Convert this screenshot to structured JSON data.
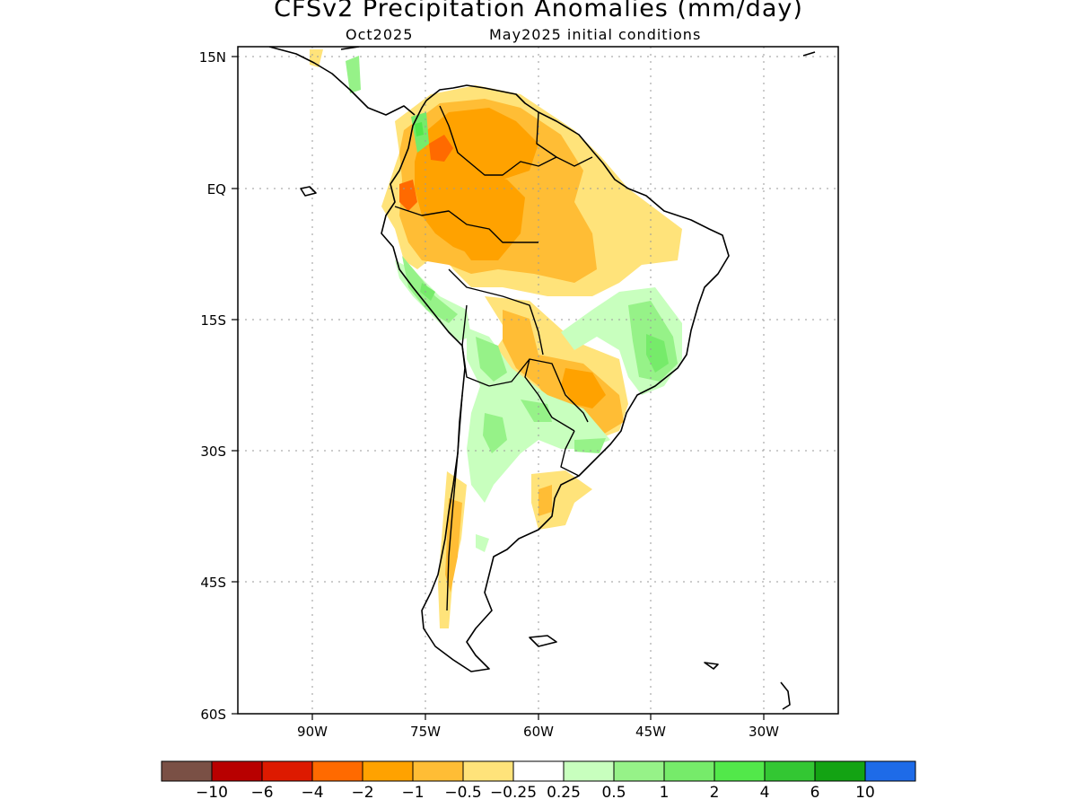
{
  "title": "CFSv2 Precipitation Anomalies (mm/day)",
  "subtitle_left": "Oct2025",
  "subtitle_right": "May2025 initial conditions",
  "lat_labels": [
    "15N",
    "EQ",
    "15S",
    "30S",
    "45S",
    "60S"
  ],
  "lon_labels": [
    "90W",
    "75W",
    "60W",
    "45W",
    "30W"
  ],
  "colorbar": {
    "colors": [
      "#7a5045",
      "#b80000",
      "#dd1a00",
      "#ff6a00",
      "#ffa200",
      "#ffbd35",
      "#ffe37a",
      "#ffffff",
      "#c8ffbe",
      "#96f288",
      "#76eb6a",
      "#52e84a",
      "#33c733",
      "#13a313",
      "#1e6be8"
    ],
    "labels": [
      "−10",
      "−6",
      "−4",
      "−2",
      "−1",
      "−0.5",
      "−0.25",
      "0.25",
      "0.5",
      "1",
      "2",
      "4",
      "6",
      "10"
    ]
  },
  "map_colors": {
    "coast": "#000000",
    "grid": "#9a9a9a"
  }
}
